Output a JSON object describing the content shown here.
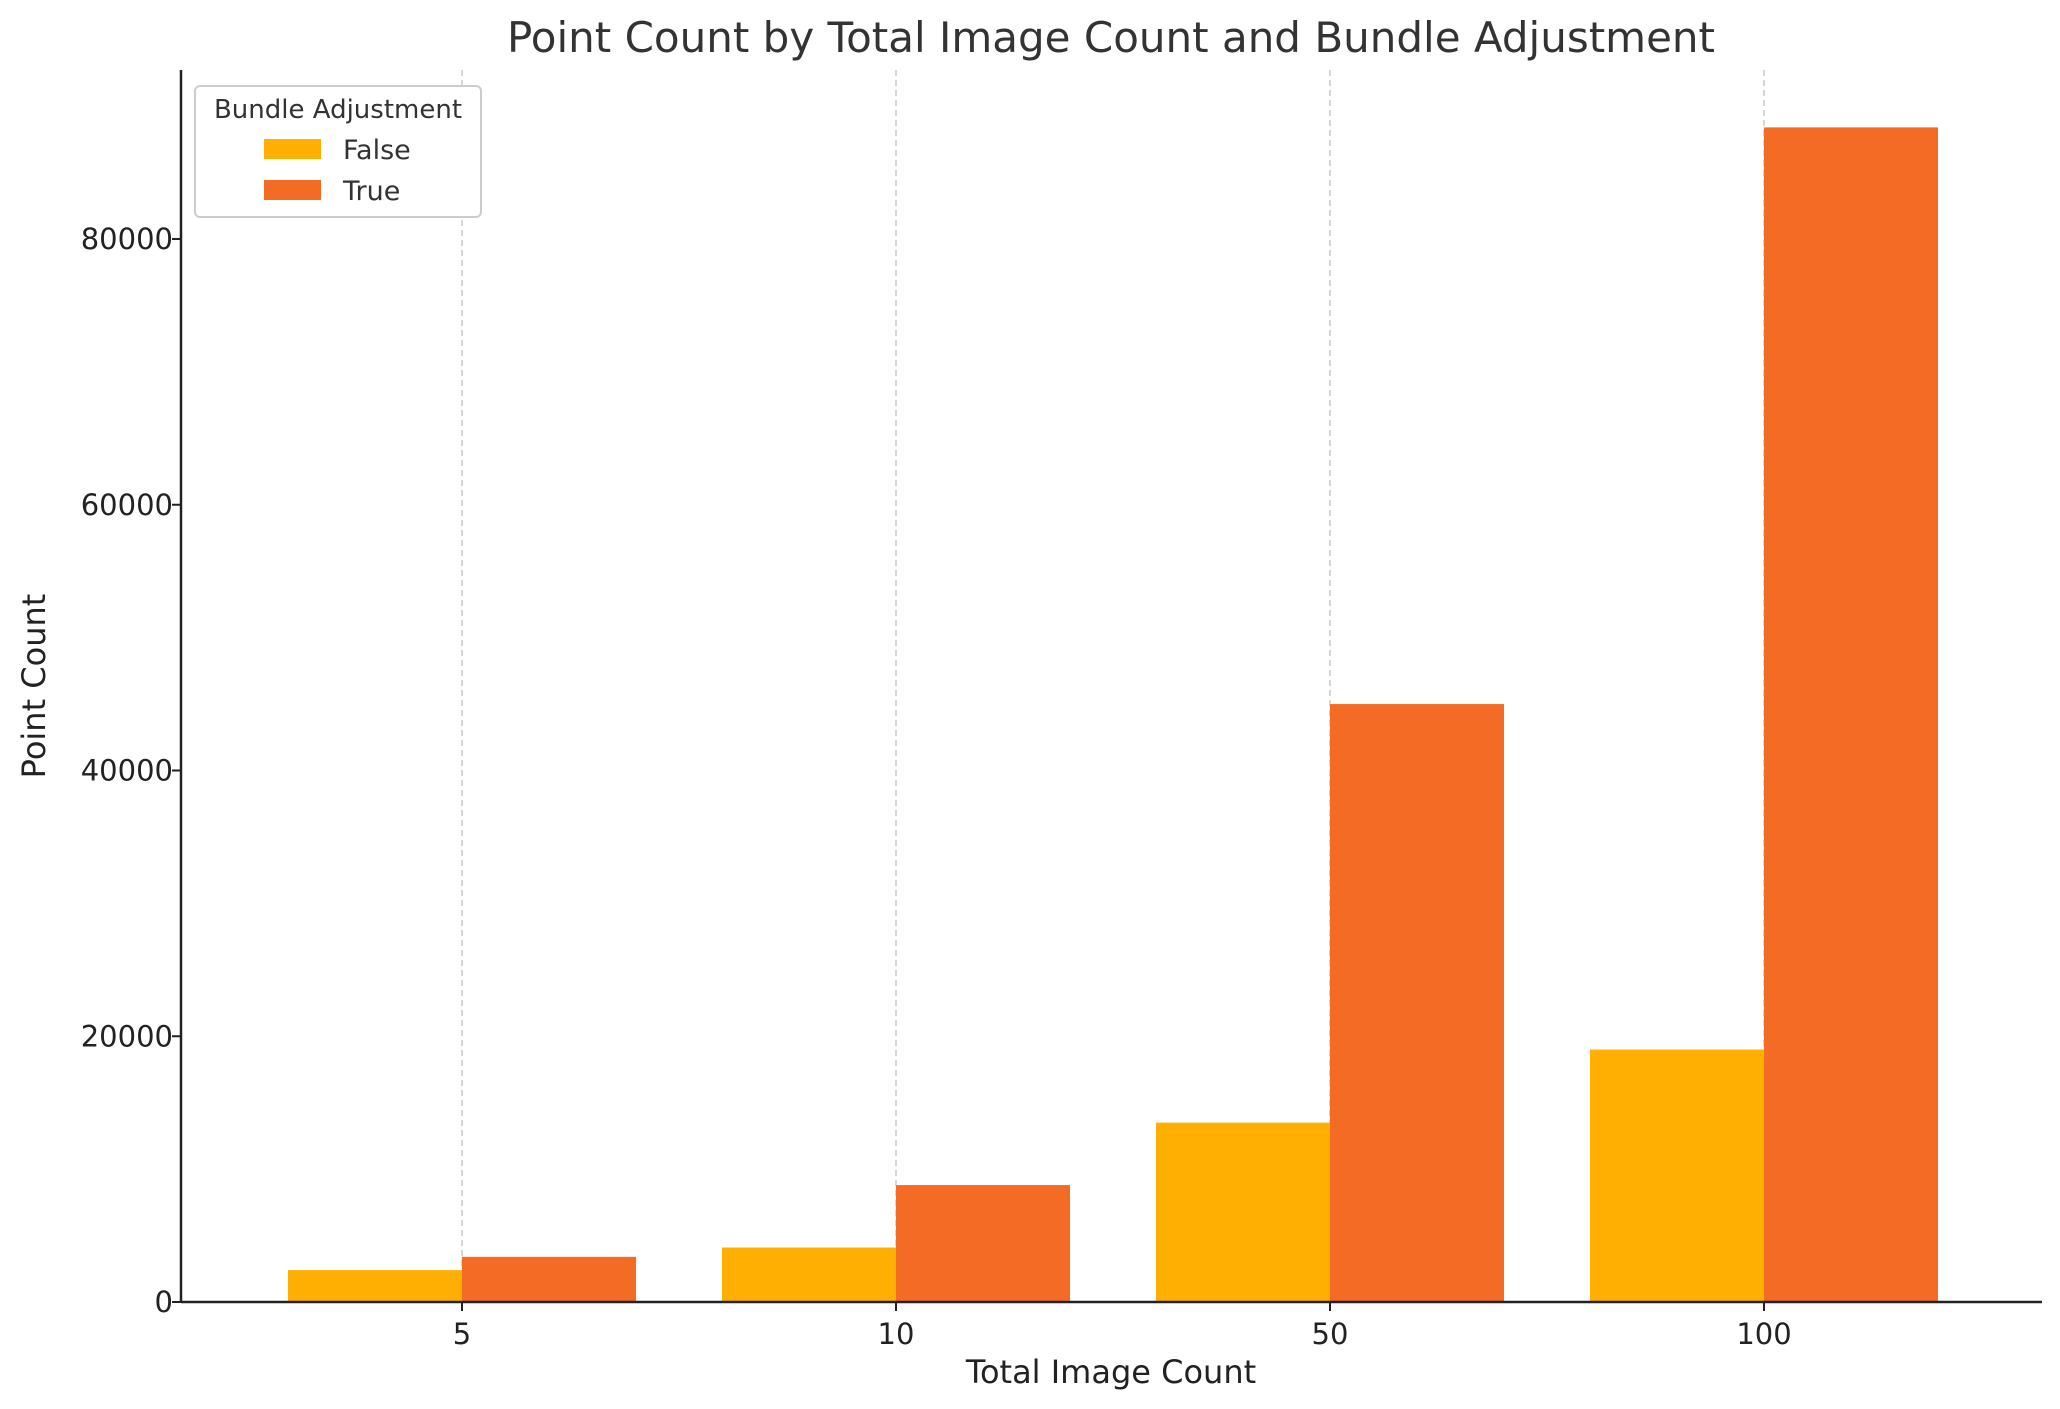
{
  "chart_data": {
    "type": "bar",
    "title": "Point Count by Total Image Count and Bundle Adjustment",
    "xlabel": "Total Image Count",
    "ylabel": "Point Count",
    "categories": [
      "5",
      "10",
      "50",
      "100"
    ],
    "series": [
      {
        "name": "False",
        "color": "#FFAE02",
        "values": [
          2400,
          4100,
          13500,
          19000
        ]
      },
      {
        "name": "True",
        "color": "#F36B24",
        "values": [
          3400,
          8800,
          45000,
          88400
        ]
      }
    ],
    "ylim": [
      0,
      93000
    ],
    "yticks": [
      0,
      20000,
      40000,
      60000,
      80000
    ],
    "grid": "vertical-dashed",
    "legend": {
      "title": "Bundle Adjustment",
      "position": "top-left"
    }
  }
}
